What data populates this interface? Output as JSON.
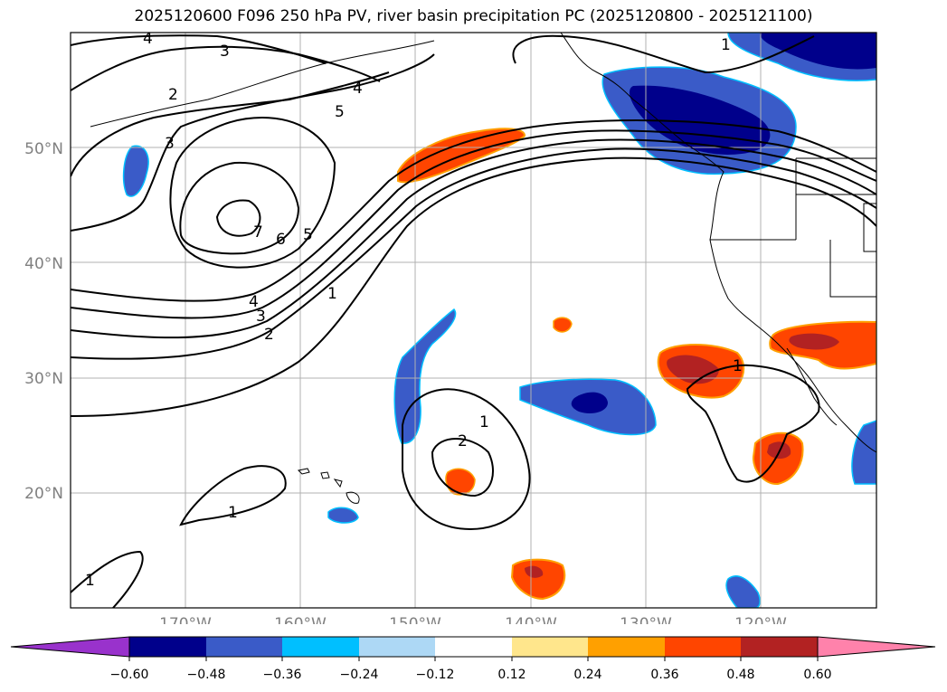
{
  "title": "2025120600 F096 250 hPa PV, river basin precipitation PC (2025120800 - 2025121100)",
  "map": {
    "lon_range": [
      -180,
      -110
    ],
    "lat_range": [
      10,
      60
    ],
    "lat_ticks": [
      "50°N",
      "40°N",
      "30°N",
      "20°N"
    ],
    "lon_ticks": [
      "170°W",
      "160°W",
      "150°W",
      "140°W",
      "130°W",
      "120°W"
    ],
    "contour_labels": [
      "4",
      "3",
      "2",
      "3",
      "4",
      "5",
      "7",
      "6",
      "5",
      "4",
      "3",
      "2",
      "1",
      "1",
      "2",
      "1",
      "1",
      "1",
      "1"
    ]
  },
  "colorbar": {
    "ticks": [
      "−0.60",
      "−0.48",
      "−0.36",
      "−0.24",
      "−0.12",
      "0.12",
      "0.24",
      "0.36",
      "0.48",
      "0.60"
    ],
    "colors": [
      "#9932cc",
      "#00008b",
      "#3a5bc8",
      "#00bfff",
      "#add8f5",
      "#ffffff",
      "#ffe68c",
      "#ffa000",
      "#ff4500",
      "#b22222",
      "#ff82ab"
    ]
  },
  "chart_data": {
    "type": "contour-map",
    "title": "2025120600 F096 250 hPa PV, river basin precipitation PC (2025120800 - 2025121100)",
    "contour_field": "250 hPa PV",
    "contour_levels": [
      1,
      2,
      3,
      4,
      5,
      6,
      7
    ],
    "fill_field": "river basin precipitation PC",
    "fill_levels": [
      -0.6,
      -0.48,
      -0.36,
      -0.24,
      -0.12,
      0.12,
      0.24,
      0.36,
      0.48,
      0.6
    ],
    "extent": {
      "lon": [
        -180,
        -110
      ],
      "lat": [
        10,
        60
      ]
    }
  }
}
